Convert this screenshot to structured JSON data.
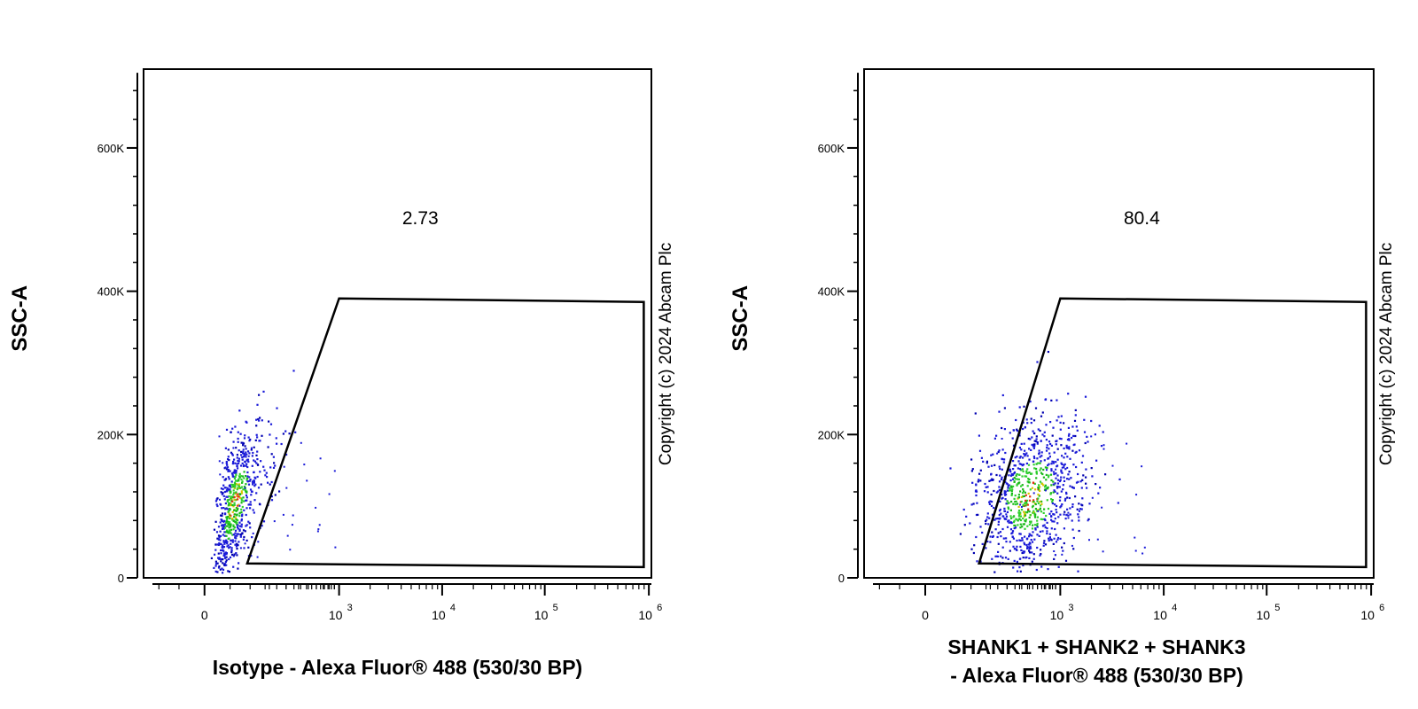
{
  "chart_data": [
    {
      "type": "scatter",
      "title": "",
      "ylabel": "SSC-A",
      "xlabel_lines": [
        "Isotype - Alexa Fluor® 488 (530/30 BP)"
      ],
      "y_ticks": [
        {
          "value": 0,
          "label": "0"
        },
        {
          "value": 200000,
          "label": "200K"
        },
        {
          "value": 400000,
          "label": "400K"
        },
        {
          "value": 600000,
          "label": "600K"
        }
      ],
      "ylim": [
        0,
        710000
      ],
      "x_scale": "biexponential",
      "x_ticks": [
        {
          "label": "0",
          "exp": ""
        },
        {
          "label": "10",
          "exp": "3"
        },
        {
          "label": "10",
          "exp": "4"
        },
        {
          "label": "10",
          "exp": "5"
        },
        {
          "label": "10",
          "exp": "6"
        }
      ],
      "gate": {
        "value": "2.73",
        "vertices": [
          [
            110,
            20000
          ],
          [
            1000,
            390000
          ],
          [
            960000,
            385000
          ],
          [
            960000,
            15000
          ]
        ]
      },
      "population": {
        "n": 650,
        "center_x": 70,
        "center_y": 105000,
        "spread_x": 0.45,
        "spread_y": 45000,
        "slope": 0.9,
        "sparse_out": 45
      },
      "copyright": "Copyright (c) 2024 Abcam Plc"
    },
    {
      "type": "scatter",
      "title": "",
      "ylabel": "SSC-A",
      "xlabel_lines": [
        "SHANK1 + SHANK2 + SHANK3",
        "- Alexa Fluor® 488 (530/30 BP)"
      ],
      "y_ticks": [
        {
          "value": 0,
          "label": "0"
        },
        {
          "value": 200000,
          "label": "200K"
        },
        {
          "value": 400000,
          "label": "400K"
        },
        {
          "value": 600000,
          "label": "600K"
        }
      ],
      "ylim": [
        0,
        710000
      ],
      "x_scale": "biexponential",
      "x_ticks": [
        {
          "label": "0",
          "exp": ""
        },
        {
          "label": "10",
          "exp": "3"
        },
        {
          "label": "10",
          "exp": "4"
        },
        {
          "label": "10",
          "exp": "5"
        },
        {
          "label": "10",
          "exp": "6"
        }
      ],
      "gate": {
        "value": "80.4",
        "vertices": [
          [
            150,
            20000
          ],
          [
            1000,
            390000
          ],
          [
            960000,
            385000
          ],
          [
            960000,
            15000
          ]
        ]
      },
      "population": {
        "n": 900,
        "center_x": 500,
        "center_y": 115000,
        "spread_x": 0.55,
        "spread_y": 55000,
        "slope": 0.25,
        "sparse_out": 40
      },
      "copyright": "Copyright (c) 2024 Abcam Plc"
    }
  ]
}
